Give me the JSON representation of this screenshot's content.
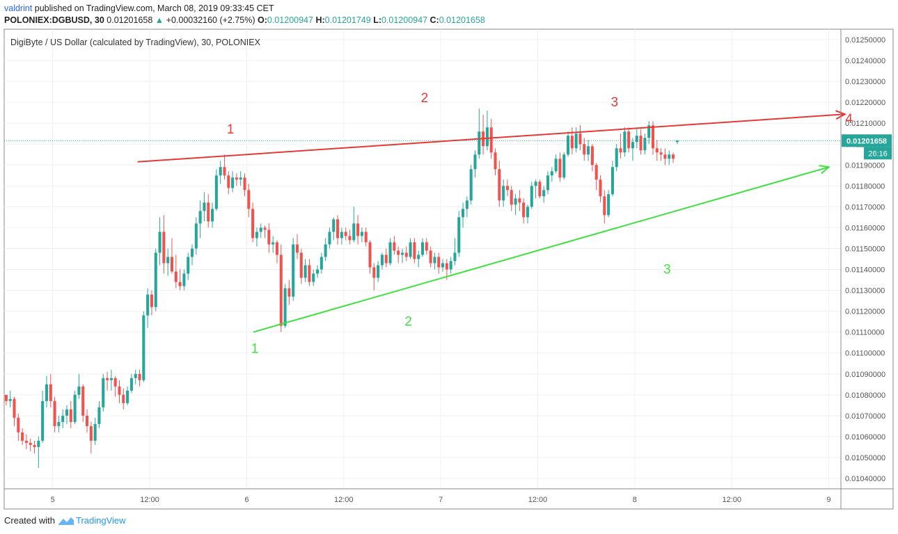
{
  "header": {
    "author": "valdrint",
    "published_text": "published on TradingView.com, March 08, 2019 09:33:45 CET",
    "symbol_line": "POLONIEX:DGBUSD, 30",
    "last": "0.01201658",
    "arrow": "▲",
    "change": "+0.00032160 (+2.75%)",
    "o_label": "O:",
    "o_value": "0.01200947",
    "h_label": "H:",
    "h_value": "0.01201749",
    "l_label": "L:",
    "l_value": "0.01200947",
    "c_label": "C:",
    "c_value": "0.01201658"
  },
  "footer": {
    "created_with": "Created with",
    "brand": "TradingView"
  },
  "colors": {
    "up": "#26a69a",
    "down": "#ef5350",
    "resistance": "#e53935",
    "support": "#3ee03e",
    "price_line": "#26a69a",
    "grid": "#eef0f3",
    "axis": "#555555"
  },
  "chart_data": {
    "type": "candlestick",
    "title": "DigiByte / US Dollar (calculated by TradingView), 30, POLONIEX",
    "ylim": [
      0.01035,
      0.01255
    ],
    "y_ticks": [
      "0.01250000",
      "0.01240000",
      "0.01230000",
      "0.01220000",
      "0.01210000",
      "0.01200000",
      "0.01190000",
      "0.01180000",
      "0.01170000",
      "0.01160000",
      "0.01150000",
      "0.01140000",
      "0.01130000",
      "0.01120000",
      "0.01110000",
      "0.01100000",
      "0.01090000",
      "0.01080000",
      "0.01070000",
      "0.01060000",
      "0.01050000",
      "0.01040000"
    ],
    "x_ticks": [
      "5",
      "12:00",
      "6",
      "12:00",
      "7",
      "12:00",
      "8",
      "12:00",
      "9"
    ],
    "x_tick_hours": [
      96,
      108,
      120,
      132,
      144,
      156,
      168,
      180,
      192
    ],
    "x_range_hours": [
      90.0,
      193.5
    ],
    "current_price_label": "0.01201658",
    "countdown_label": "26:16",
    "current_price": 0.01201658,
    "candle_start_hour": 90.25,
    "candle_step_hours": 0.5,
    "candles": [
      [
        0.0108,
        0.0108,
        0.01075,
        0.01077
      ],
      [
        0.01077,
        0.01082,
        0.01074,
        0.01078
      ],
      [
        0.01078,
        0.01079,
        0.01065,
        0.01069
      ],
      [
        0.01069,
        0.01071,
        0.01058,
        0.01062
      ],
      [
        0.01062,
        0.01064,
        0.01056,
        0.01058
      ],
      [
        0.01058,
        0.01061,
        0.01054,
        0.01057
      ],
      [
        0.01057,
        0.01059,
        0.01053,
        0.01056
      ],
      [
        0.01056,
        0.01058,
        0.01052,
        0.01055
      ],
      [
        0.01055,
        0.0106,
        0.01045,
        0.01058
      ],
      [
        0.01058,
        0.01082,
        0.01057,
        0.01077
      ],
      [
        0.01077,
        0.01089,
        0.01074,
        0.01085
      ],
      [
        0.01085,
        0.0109,
        0.01074,
        0.01077
      ],
      [
        0.01077,
        0.01079,
        0.01062,
        0.01065
      ],
      [
        0.01065,
        0.0107,
        0.01062,
        0.01067
      ],
      [
        0.01067,
        0.01073,
        0.01064,
        0.0107
      ],
      [
        0.0107,
        0.01075,
        0.01066,
        0.01073
      ],
      [
        0.01073,
        0.01077,
        0.01064,
        0.01067
      ],
      [
        0.01067,
        0.01082,
        0.01066,
        0.0108
      ],
      [
        0.0108,
        0.0109,
        0.01078,
        0.01084
      ],
      [
        0.01084,
        0.01085,
        0.01067,
        0.0107
      ],
      [
        0.0107,
        0.01073,
        0.01062,
        0.01065
      ],
      [
        0.01065,
        0.01067,
        0.01052,
        0.01058
      ],
      [
        0.01058,
        0.01069,
        0.01056,
        0.01066
      ],
      [
        0.01066,
        0.01077,
        0.01064,
        0.01074
      ],
      [
        0.01074,
        0.0109,
        0.01072,
        0.01088
      ],
      [
        0.01088,
        0.01091,
        0.01082,
        0.01087
      ],
      [
        0.01087,
        0.01092,
        0.01082,
        0.01088
      ],
      [
        0.01088,
        0.01089,
        0.01079,
        0.01084
      ],
      [
        0.01084,
        0.01087,
        0.01076,
        0.0108
      ],
      [
        0.0108,
        0.01083,
        0.01073,
        0.01076
      ],
      [
        0.01076,
        0.01084,
        0.01075,
        0.01082
      ],
      [
        0.01082,
        0.0109,
        0.01081,
        0.01088
      ],
      [
        0.01088,
        0.01092,
        0.01085,
        0.0109
      ],
      [
        0.0109,
        0.01092,
        0.01084,
        0.01087
      ],
      [
        0.01087,
        0.0112,
        0.01086,
        0.01118
      ],
      [
        0.01118,
        0.01131,
        0.01112,
        0.01128
      ],
      [
        0.01128,
        0.0113,
        0.01118,
        0.01122
      ],
      [
        0.01122,
        0.0115,
        0.0112,
        0.01148
      ],
      [
        0.01148,
        0.01165,
        0.01142,
        0.01158
      ],
      [
        0.01158,
        0.01166,
        0.01138,
        0.01143
      ],
      [
        0.01143,
        0.0115,
        0.01137,
        0.01146
      ],
      [
        0.01146,
        0.01155,
        0.01138,
        0.01139
      ],
      [
        0.01139,
        0.01147,
        0.01131,
        0.01134
      ],
      [
        0.01134,
        0.0114,
        0.0113,
        0.01132
      ],
      [
        0.01132,
        0.0114,
        0.0113,
        0.01138
      ],
      [
        0.01138,
        0.01148,
        0.01135,
        0.01146
      ],
      [
        0.01146,
        0.01152,
        0.01142,
        0.0115
      ],
      [
        0.0115,
        0.01165,
        0.01147,
        0.01162
      ],
      [
        0.01162,
        0.01173,
        0.01155,
        0.01168
      ],
      [
        0.01168,
        0.01177,
        0.01163,
        0.01172
      ],
      [
        0.01172,
        0.01176,
        0.0116,
        0.01163
      ],
      [
        0.01163,
        0.01172,
        0.0116,
        0.01169
      ],
      [
        0.01169,
        0.01188,
        0.01168,
        0.01185
      ],
      [
        0.01185,
        0.01192,
        0.01181,
        0.01189
      ],
      [
        0.01189,
        0.01195,
        0.01183,
        0.01185
      ],
      [
        0.01185,
        0.01187,
        0.01176,
        0.01179
      ],
      [
        0.01179,
        0.01187,
        0.01177,
        0.01184
      ],
      [
        0.01184,
        0.01186,
        0.0118,
        0.01183
      ],
      [
        0.01183,
        0.01187,
        0.0118,
        0.01184
      ],
      [
        0.01184,
        0.01186,
        0.01175,
        0.01178
      ],
      [
        0.01178,
        0.01181,
        0.01165,
        0.01169
      ],
      [
        0.01169,
        0.01172,
        0.01153,
        0.01155
      ],
      [
        0.01155,
        0.0116,
        0.01151,
        0.01158
      ],
      [
        0.01158,
        0.01162,
        0.01155,
        0.0116
      ],
      [
        0.0116,
        0.01161,
        0.01155,
        0.01159
      ],
      [
        0.01159,
        0.01162,
        0.01148,
        0.01152
      ],
      [
        0.01152,
        0.01156,
        0.01148,
        0.01153
      ],
      [
        0.01153,
        0.01154,
        0.01143,
        0.01147
      ],
      [
        0.01147,
        0.01152,
        0.0111,
        0.01113
      ],
      [
        0.01113,
        0.01133,
        0.01112,
        0.01131
      ],
      [
        0.01131,
        0.01135,
        0.01123,
        0.01127
      ],
      [
        0.01127,
        0.01155,
        0.01125,
        0.01152
      ],
      [
        0.01152,
        0.01157,
        0.01145,
        0.01148
      ],
      [
        0.01148,
        0.0115,
        0.01133,
        0.01136
      ],
      [
        0.01136,
        0.01145,
        0.01134,
        0.01142
      ],
      [
        0.01142,
        0.01145,
        0.01132,
        0.01134
      ],
      [
        0.01134,
        0.0114,
        0.01132,
        0.01138
      ],
      [
        0.01138,
        0.01142,
        0.01136,
        0.0114
      ],
      [
        0.0114,
        0.01148,
        0.01138,
        0.01146
      ],
      [
        0.01146,
        0.01155,
        0.01144,
        0.01152
      ],
      [
        0.01152,
        0.0116,
        0.0115,
        0.01158
      ],
      [
        0.01158,
        0.01165,
        0.01154,
        0.01164
      ],
      [
        0.01164,
        0.01166,
        0.01152,
        0.01155
      ],
      [
        0.01155,
        0.0116,
        0.01152,
        0.01158
      ],
      [
        0.01158,
        0.0116,
        0.01154,
        0.01156
      ],
      [
        0.01156,
        0.01159,
        0.01152,
        0.01154
      ],
      [
        0.01154,
        0.0117,
        0.01153,
        0.01162
      ],
      [
        0.01162,
        0.01166,
        0.01152,
        0.01156
      ],
      [
        0.01156,
        0.0116,
        0.01153,
        0.01158
      ],
      [
        0.01158,
        0.0116,
        0.01151,
        0.01153
      ],
      [
        0.01153,
        0.01154,
        0.01138,
        0.01141
      ],
      [
        0.01141,
        0.01143,
        0.0113,
        0.01136
      ],
      [
        0.01136,
        0.01144,
        0.01134,
        0.01142
      ],
      [
        0.01142,
        0.01148,
        0.0114,
        0.01147
      ],
      [
        0.01147,
        0.0115,
        0.01141,
        0.01143
      ],
      [
        0.01143,
        0.01155,
        0.01142,
        0.01153
      ],
      [
        0.01153,
        0.01156,
        0.01147,
        0.01149
      ],
      [
        0.01149,
        0.01151,
        0.01143,
        0.01147
      ],
      [
        0.01147,
        0.0115,
        0.01143,
        0.01148
      ],
      [
        0.01148,
        0.01151,
        0.01144,
        0.01146
      ],
      [
        0.01146,
        0.01155,
        0.01145,
        0.01153
      ],
      [
        0.01153,
        0.01155,
        0.01143,
        0.01145
      ],
      [
        0.01145,
        0.01149,
        0.01141,
        0.01147
      ],
      [
        0.01147,
        0.01155,
        0.01146,
        0.01153
      ],
      [
        0.01153,
        0.01155,
        0.01147,
        0.01149
      ],
      [
        0.01149,
        0.01151,
        0.01141,
        0.01143
      ],
      [
        0.01143,
        0.01148,
        0.0114,
        0.01146
      ],
      [
        0.01146,
        0.01148,
        0.01138,
        0.01141
      ],
      [
        0.01141,
        0.01145,
        0.01139,
        0.01143
      ],
      [
        0.01143,
        0.01145,
        0.01135,
        0.0114
      ],
      [
        0.0114,
        0.01146,
        0.01138,
        0.01144
      ],
      [
        0.01144,
        0.01155,
        0.01142,
        0.01148
      ],
      [
        0.01148,
        0.01168,
        0.01146,
        0.01165
      ],
      [
        0.01165,
        0.01172,
        0.0116,
        0.01169
      ],
      [
        0.01169,
        0.01175,
        0.01165,
        0.01173
      ],
      [
        0.01173,
        0.0119,
        0.01171,
        0.01188
      ],
      [
        0.01188,
        0.01197,
        0.01184,
        0.01195
      ],
      [
        0.01195,
        0.01217,
        0.01193,
        0.01206
      ],
      [
        0.01206,
        0.01214,
        0.01195,
        0.01199
      ],
      [
        0.01199,
        0.01216,
        0.01197,
        0.01208
      ],
      [
        0.01208,
        0.01212,
        0.01193,
        0.01196
      ],
      [
        0.01196,
        0.01198,
        0.01185,
        0.01188
      ],
      [
        0.01188,
        0.01192,
        0.0117,
        0.01173
      ],
      [
        0.01173,
        0.01183,
        0.0117,
        0.0118
      ],
      [
        0.0118,
        0.01183,
        0.01175,
        0.01178
      ],
      [
        0.01178,
        0.0118,
        0.01168,
        0.01171
      ],
      [
        0.01171,
        0.01176,
        0.01166,
        0.01174
      ],
      [
        0.01174,
        0.01178,
        0.01168,
        0.01172
      ],
      [
        0.01172,
        0.01174,
        0.01162,
        0.01165
      ],
      [
        0.01165,
        0.01171,
        0.01162,
        0.0117
      ],
      [
        0.0117,
        0.01182,
        0.01169,
        0.0118
      ],
      [
        0.0118,
        0.01183,
        0.01174,
        0.01182
      ],
      [
        0.01182,
        0.01183,
        0.01174,
        0.01175
      ],
      [
        0.01175,
        0.0118,
        0.01172,
        0.01178
      ],
      [
        0.01178,
        0.01187,
        0.01176,
        0.01185
      ],
      [
        0.01185,
        0.01189,
        0.01182,
        0.01187
      ],
      [
        0.01187,
        0.01195,
        0.01186,
        0.01193
      ],
      [
        0.01193,
        0.01196,
        0.01182,
        0.01184
      ],
      [
        0.01184,
        0.01196,
        0.01183,
        0.01195
      ],
      [
        0.01195,
        0.01206,
        0.01194,
        0.01204
      ],
      [
        0.01204,
        0.01208,
        0.01195,
        0.01198
      ],
      [
        0.01198,
        0.01208,
        0.01196,
        0.01205
      ],
      [
        0.01205,
        0.01209,
        0.01197,
        0.012
      ],
      [
        0.012,
        0.01203,
        0.01192,
        0.01195
      ],
      [
        0.01195,
        0.01202,
        0.01192,
        0.01199
      ],
      [
        0.01199,
        0.012,
        0.01187,
        0.0119
      ],
      [
        0.0119,
        0.01191,
        0.01178,
        0.01183
      ],
      [
        0.01183,
        0.01185,
        0.01172,
        0.01175
      ],
      [
        0.01175,
        0.01178,
        0.01162,
        0.01166
      ],
      [
        0.01166,
        0.01178,
        0.01165,
        0.01176
      ],
      [
        0.01176,
        0.01192,
        0.01175,
        0.01189
      ],
      [
        0.01189,
        0.012,
        0.01187,
        0.01198
      ],
      [
        0.01198,
        0.01205,
        0.01193,
        0.01196
      ],
      [
        0.01196,
        0.01208,
        0.01194,
        0.01206
      ],
      [
        0.01206,
        0.01208,
        0.01196,
        0.01198
      ],
      [
        0.01198,
        0.01203,
        0.01192,
        0.01201
      ],
      [
        0.01201,
        0.01208,
        0.01198,
        0.01204
      ],
      [
        0.01204,
        0.01207,
        0.01195,
        0.01197
      ],
      [
        0.01197,
        0.01205,
        0.01195,
        0.01203
      ],
      [
        0.01203,
        0.01211,
        0.012,
        0.01209
      ],
      [
        0.01209,
        0.01211,
        0.01195,
        0.01198
      ],
      [
        0.01198,
        0.01202,
        0.01192,
        0.01196
      ],
      [
        0.01196,
        0.01198,
        0.01192,
        0.01195
      ],
      [
        0.01195,
        0.01198,
        0.0119,
        0.01193
      ],
      [
        0.01193,
        0.01197,
        0.0119,
        0.01195
      ],
      [
        0.01195,
        0.01196,
        0.01191,
        0.01193
      ],
      [
        0.01201,
        0.01202,
        0.012,
        0.01201658
      ]
    ],
    "trendlines": [
      {
        "name": "resistance",
        "from": [
          106.5,
          0.011915
        ],
        "to": [
          194.0,
          0.012143
        ],
        "arrow": true
      },
      {
        "name": "support",
        "from": [
          120.8,
          0.0111
        ],
        "to": [
          192.0,
          0.01189
        ],
        "arrow": true
      }
    ],
    "annotations": [
      {
        "text": "1",
        "x": 118.0,
        "y": 0.01205,
        "color": "red"
      },
      {
        "text": "2",
        "x": 142.0,
        "y": 0.0122,
        "color": "red"
      },
      {
        "text": "3",
        "x": 165.5,
        "y": 0.01218,
        "color": "red"
      },
      {
        "text": "4",
        "x": 194.5,
        "y": 0.0121,
        "color": "red"
      },
      {
        "text": "1",
        "x": 121.0,
        "y": 0.011,
        "color": "green"
      },
      {
        "text": "2",
        "x": 140.0,
        "y": 0.01113,
        "color": "green"
      },
      {
        "text": "3",
        "x": 172.0,
        "y": 0.01138,
        "color": "green"
      }
    ]
  }
}
